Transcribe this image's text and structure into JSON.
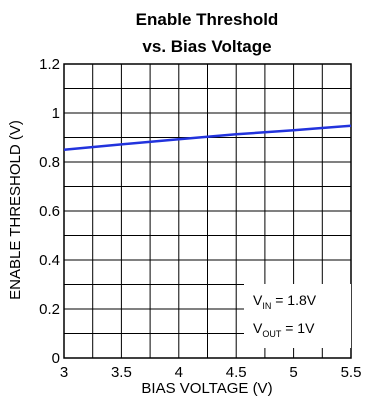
{
  "chart_data": {
    "type": "line",
    "title_line1": "Enable Threshold",
    "title_line2": "vs. Bias Voltage",
    "xlabel": "BIAS VOLTAGE (V)",
    "ylabel": "ENABLE THRESHOLD (V)",
    "xlim": [
      3,
      5.5
    ],
    "ylim": [
      0,
      1.2
    ],
    "x_ticks": [
      3,
      3.5,
      4,
      4.5,
      5,
      5.5
    ],
    "x_tick_labels": [
      "3",
      "3.5",
      "4",
      "4.5",
      "5",
      "5.5"
    ],
    "y_ticks": [
      0,
      0.2,
      0.4,
      0.6,
      0.8,
      1,
      1.2
    ],
    "y_tick_labels": [
      "0",
      "0.2",
      "0.4",
      "0.6",
      "0.8",
      "1",
      "1.2"
    ],
    "grid": true,
    "series": [
      {
        "color": "#2233dd",
        "x": [
          3,
          3.5,
          4,
          4.5,
          5,
          5.5
        ],
        "y": [
          0.85,
          0.872,
          0.893,
          0.913,
          0.93,
          0.948
        ]
      }
    ],
    "annotations": [
      {
        "main": "V",
        "sub": "IN",
        "rest": " = 1.8V"
      },
      {
        "main": "V",
        "sub": "OUT",
        "rest": " = 1V"
      }
    ]
  }
}
